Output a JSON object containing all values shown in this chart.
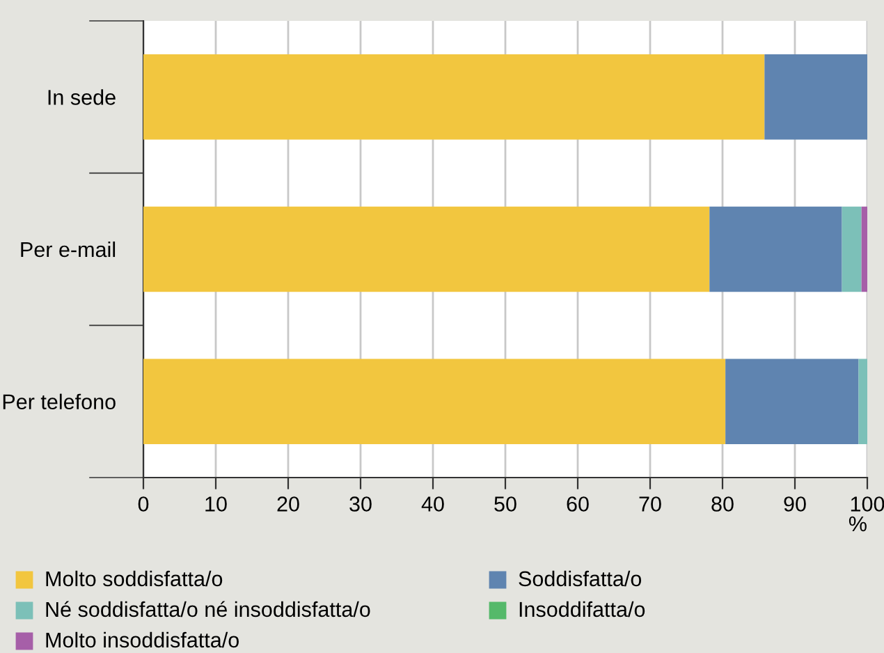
{
  "chart_data": {
    "type": "bar",
    "orientation": "horizontal",
    "stacked": true,
    "xlabel": "%",
    "categories": [
      "In sede",
      "Per e-mail",
      "Per telefono"
    ],
    "series": [
      {
        "name": "Molto soddisfatta/o",
        "color": "#f2c63f",
        "values": [
          85.8,
          78.2,
          80.4
        ]
      },
      {
        "name": "Soddisfatta/o",
        "color": "#5f84b0",
        "values": [
          14.2,
          18.3,
          18.4
        ]
      },
      {
        "name": "Né soddisfatta/o né insoddisfatta/o",
        "color": "#7cc0b8",
        "values": [
          0,
          2.7,
          1.2
        ]
      },
      {
        "name": "Insoddifatta/o",
        "color": "#55b96a",
        "values": [
          0,
          0,
          0
        ]
      },
      {
        "name": "Molto insoddisfatta/o",
        "color": "#a65fa8",
        "values": [
          0,
          0.8,
          0
        ]
      }
    ],
    "xlim": [
      0,
      100
    ],
    "xticks": [
      0,
      10,
      20,
      30,
      40,
      50,
      60,
      70,
      80,
      90,
      100
    ],
    "grid": "x",
    "legend": "bottom"
  }
}
